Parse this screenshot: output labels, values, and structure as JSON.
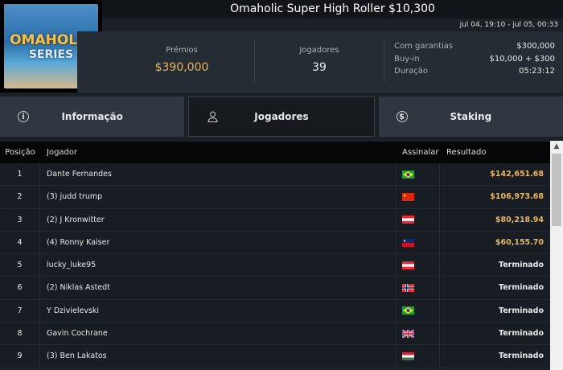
{
  "logo": {
    "line1": "OMAHOLIC",
    "line2": "SERIES"
  },
  "title": "Omaholic Super High Roller $10,300",
  "dates": "jul 04, 19:10 - jul 05, 00:33",
  "stats": {
    "prizes_label": "Prémios",
    "prizes": "$390,000",
    "players_label": "Jogadores",
    "players": "39",
    "details": [
      {
        "k": "Com garantias",
        "v": "$300,000"
      },
      {
        "k": "Buy-in",
        "v": "$10,000 + $300"
      },
      {
        "k": "Duração",
        "v": "05:23:12"
      }
    ]
  },
  "tabs": [
    {
      "label": "Informação",
      "icon": "info-icon"
    },
    {
      "label": "Jogadores",
      "icon": "user-icon",
      "active": true
    },
    {
      "label": "Staking",
      "icon": "dollar-icon"
    }
  ],
  "table": {
    "headers": [
      "Posição",
      "Jogador",
      "Assinalar",
      "Resultado"
    ],
    "rows": [
      {
        "pos": "1",
        "name": "Dante Fernandes",
        "flag": "brazil",
        "result": "$142,651.68",
        "money": true
      },
      {
        "pos": "2",
        "name": "(3) judd trump",
        "flag": "china",
        "result": "$106,973.68",
        "money": true
      },
      {
        "pos": "3",
        "name": "(2) J Kronwitter",
        "flag": "austria",
        "result": "$80,218.94",
        "money": true
      },
      {
        "pos": "4",
        "name": "(4) Ronny Kaiser",
        "flag": "liechtenstein",
        "result": "$60,155.70",
        "money": true
      },
      {
        "pos": "5",
        "name": "lucky_luke95",
        "flag": "austria",
        "result": "Terminado"
      },
      {
        "pos": "6",
        "name": "(2) Niklas Astedt",
        "flag": "norway",
        "result": "Terminado"
      },
      {
        "pos": "7",
        "name": "Y Dzivielevski",
        "flag": "brazil",
        "result": "Terminado"
      },
      {
        "pos": "8",
        "name": "Gavin Cochrane",
        "flag": "uk",
        "result": "Terminado"
      },
      {
        "pos": "9",
        "name": "(3) Ben Lakatos",
        "flag": "hungary",
        "result": "Terminado"
      }
    ]
  },
  "colors": {
    "accent_money": "#e7b563",
    "bg": "#1b2027"
  }
}
